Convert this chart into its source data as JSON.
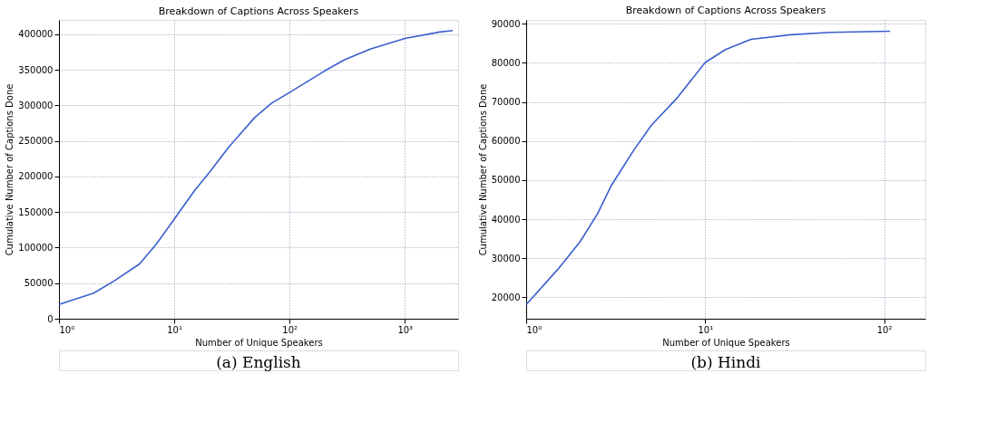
{
  "chart_data": [
    {
      "type": "line",
      "title": "Breakdown of Captions Across Speakers",
      "xlabel": "Number of Unique Speakers",
      "ylabel": "Cumulative Number of Captions Done",
      "annotations": [
        "(a) English"
      ],
      "log": "x",
      "grid": true,
      "marker": "none",
      "line_style": "solid",
      "x": [
        1,
        2,
        3,
        5,
        7,
        10,
        15,
        20,
        30,
        50,
        70,
        100,
        200,
        300,
        500,
        1000,
        2000,
        2600
      ],
      "series": [
        {
          "color": "#3a5fcd",
          "values": [
            20000,
            36000,
            53000,
            77000,
            105000,
            140000,
            180000,
            205000,
            242000,
            283000,
            303000,
            318000,
            348000,
            364000,
            379000,
            394000,
            403000,
            405000
          ]
        }
      ],
      "xlim": [
        1,
        2900
      ],
      "xticks": [
        {
          "value": 1,
          "label": "10⁰"
        },
        {
          "value": 10,
          "label": "10¹"
        },
        {
          "value": 100,
          "label": "10²"
        },
        {
          "value": 1000,
          "label": "10³"
        }
      ],
      "ylim": [
        0,
        420000
      ],
      "yticks": [
        0,
        50000,
        100000,
        150000,
        200000,
        250000,
        300000,
        350000,
        400000
      ]
    },
    {
      "type": "line",
      "title": "Breakdown of Captions Across Speakers",
      "xlabel": "Number of Unique Speakers",
      "ylabel": "Cumulative Number of Captions Done",
      "annotations": [
        "(b) Hindi"
      ],
      "log": "x",
      "grid": true,
      "marker": "none",
      "line_style": "solid",
      "x": [
        1,
        1.5,
        2,
        2.5,
        3,
        4,
        5,
        7,
        10,
        13,
        18,
        30,
        50,
        108
      ],
      "series": [
        {
          "color": "#3a5fcd",
          "values": [
            18100,
            27100,
            34200,
            41300,
            48700,
            57700,
            64000,
            71100,
            80100,
            83400,
            86000,
            87200,
            87800,
            88100
          ]
        }
      ],
      "xlim": [
        1,
        170
      ],
      "xticks": [
        {
          "value": 1,
          "label": "10⁰"
        },
        {
          "value": 10,
          "label": "10¹"
        },
        {
          "value": 100,
          "label": "10²"
        }
      ],
      "ylim": [
        14500,
        91000
      ],
      "yticks": [
        20000,
        30000,
        40000,
        50000,
        60000,
        70000,
        80000,
        90000
      ]
    }
  ]
}
